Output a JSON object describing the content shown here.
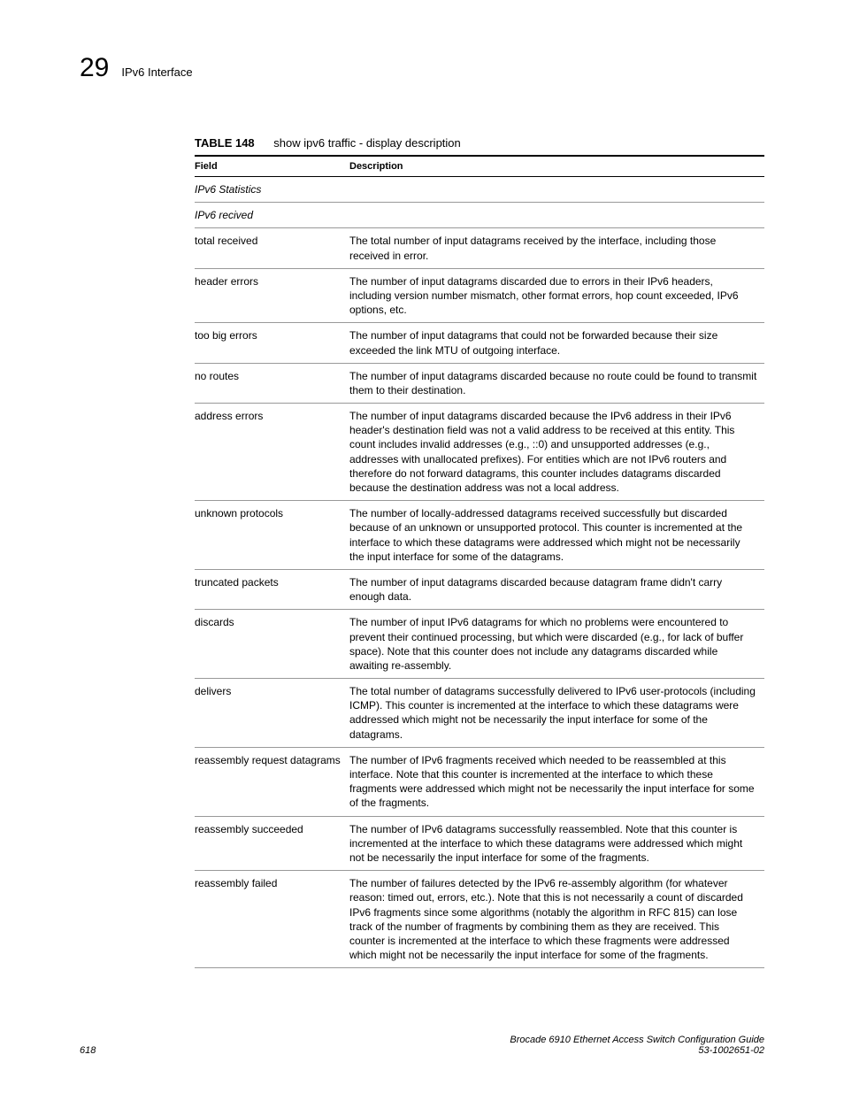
{
  "header": {
    "chapter_number": "29",
    "chapter_title": "IPv6 Interface"
  },
  "table": {
    "label": "TABLE 148",
    "caption": "show ipv6 traffic - display description",
    "columns": {
      "field": "Field",
      "desc": "Description"
    },
    "rows": [
      {
        "field": "IPv6 Statistics",
        "desc": "",
        "italic": true
      },
      {
        "field": "IPv6 recived",
        "desc": "",
        "italic": true
      },
      {
        "field": "total received",
        "desc": "The total number of input datagrams received by the interface, including those received in error."
      },
      {
        "field": "header errors",
        "desc": "The number of input datagrams discarded due to errors in their IPv6 headers, including version number mismatch, other format errors, hop count exceeded, IPv6 options, etc."
      },
      {
        "field": "too big errors",
        "desc": "The number of input datagrams that could not be forwarded because their size exceeded the link MTU of outgoing interface."
      },
      {
        "field": "no routes",
        "desc": "The number of input datagrams discarded because no route could be found to transmit them to their destination."
      },
      {
        "field": "address errors",
        "desc": "The number of input datagrams discarded because the IPv6 address in their IPv6 header's destination field was not a valid address to be received at this entity. This count includes invalid addresses (e.g., ::0) and unsupported addresses (e.g., addresses with unallocated prefixes). For entities which are not IPv6 routers and therefore do not forward datagrams, this counter includes datagrams discarded because the destination address was not a local address."
      },
      {
        "field": "unknown protocols",
        "desc": "The number of locally-addressed datagrams received successfully but discarded because of an unknown or unsupported protocol. This counter is incremented at the interface to which these datagrams were addressed which might not be necessarily the input interface for some of the datagrams."
      },
      {
        "field": "truncated packets",
        "desc": "The number of input datagrams discarded because datagram frame didn't carry enough data."
      },
      {
        "field": "discards",
        "desc": "The number of input IPv6 datagrams for which no problems were encountered to prevent their continued processing, but which were discarded (e.g., for lack of buffer space). Note that this counter does not include any datagrams discarded while awaiting re-assembly."
      },
      {
        "field": "delivers",
        "desc": "The total number of datagrams successfully delivered to IPv6 user-protocols (including ICMP). This counter is incremented at the interface to which these datagrams were addressed which might not be necessarily the input interface for some of the datagrams."
      },
      {
        "field": "reassembly request datagrams",
        "desc": "The number of IPv6 fragments received which needed to be reassembled at this interface. Note that this counter is incremented at the interface to which these fragments were addressed which might not be necessarily the input interface for some of the fragments."
      },
      {
        "field": "reassembly succeeded",
        "desc": "The number of IPv6 datagrams successfully reassembled. Note that this counter is incremented at the interface to which these datagrams were addressed which might not be necessarily the input interface for some of the fragments."
      },
      {
        "field": "reassembly failed",
        "desc": "The number of failures detected by the IPv6 re-assembly algorithm (for whatever reason: timed out, errors, etc.). Note that this is not necessarily a count of discarded IPv6 fragments since some algorithms (notably the algorithm in RFC 815) can lose track of the number of fragments by combining them as they are received. This counter is incremented at the interface to which these fragments were addressed which might not be necessarily the input interface for some of the fragments."
      }
    ]
  },
  "footer": {
    "page_number": "618",
    "doc_title": "Brocade 6910 Ethernet Access Switch Configuration Guide",
    "doc_id": "53-1002651-02"
  }
}
